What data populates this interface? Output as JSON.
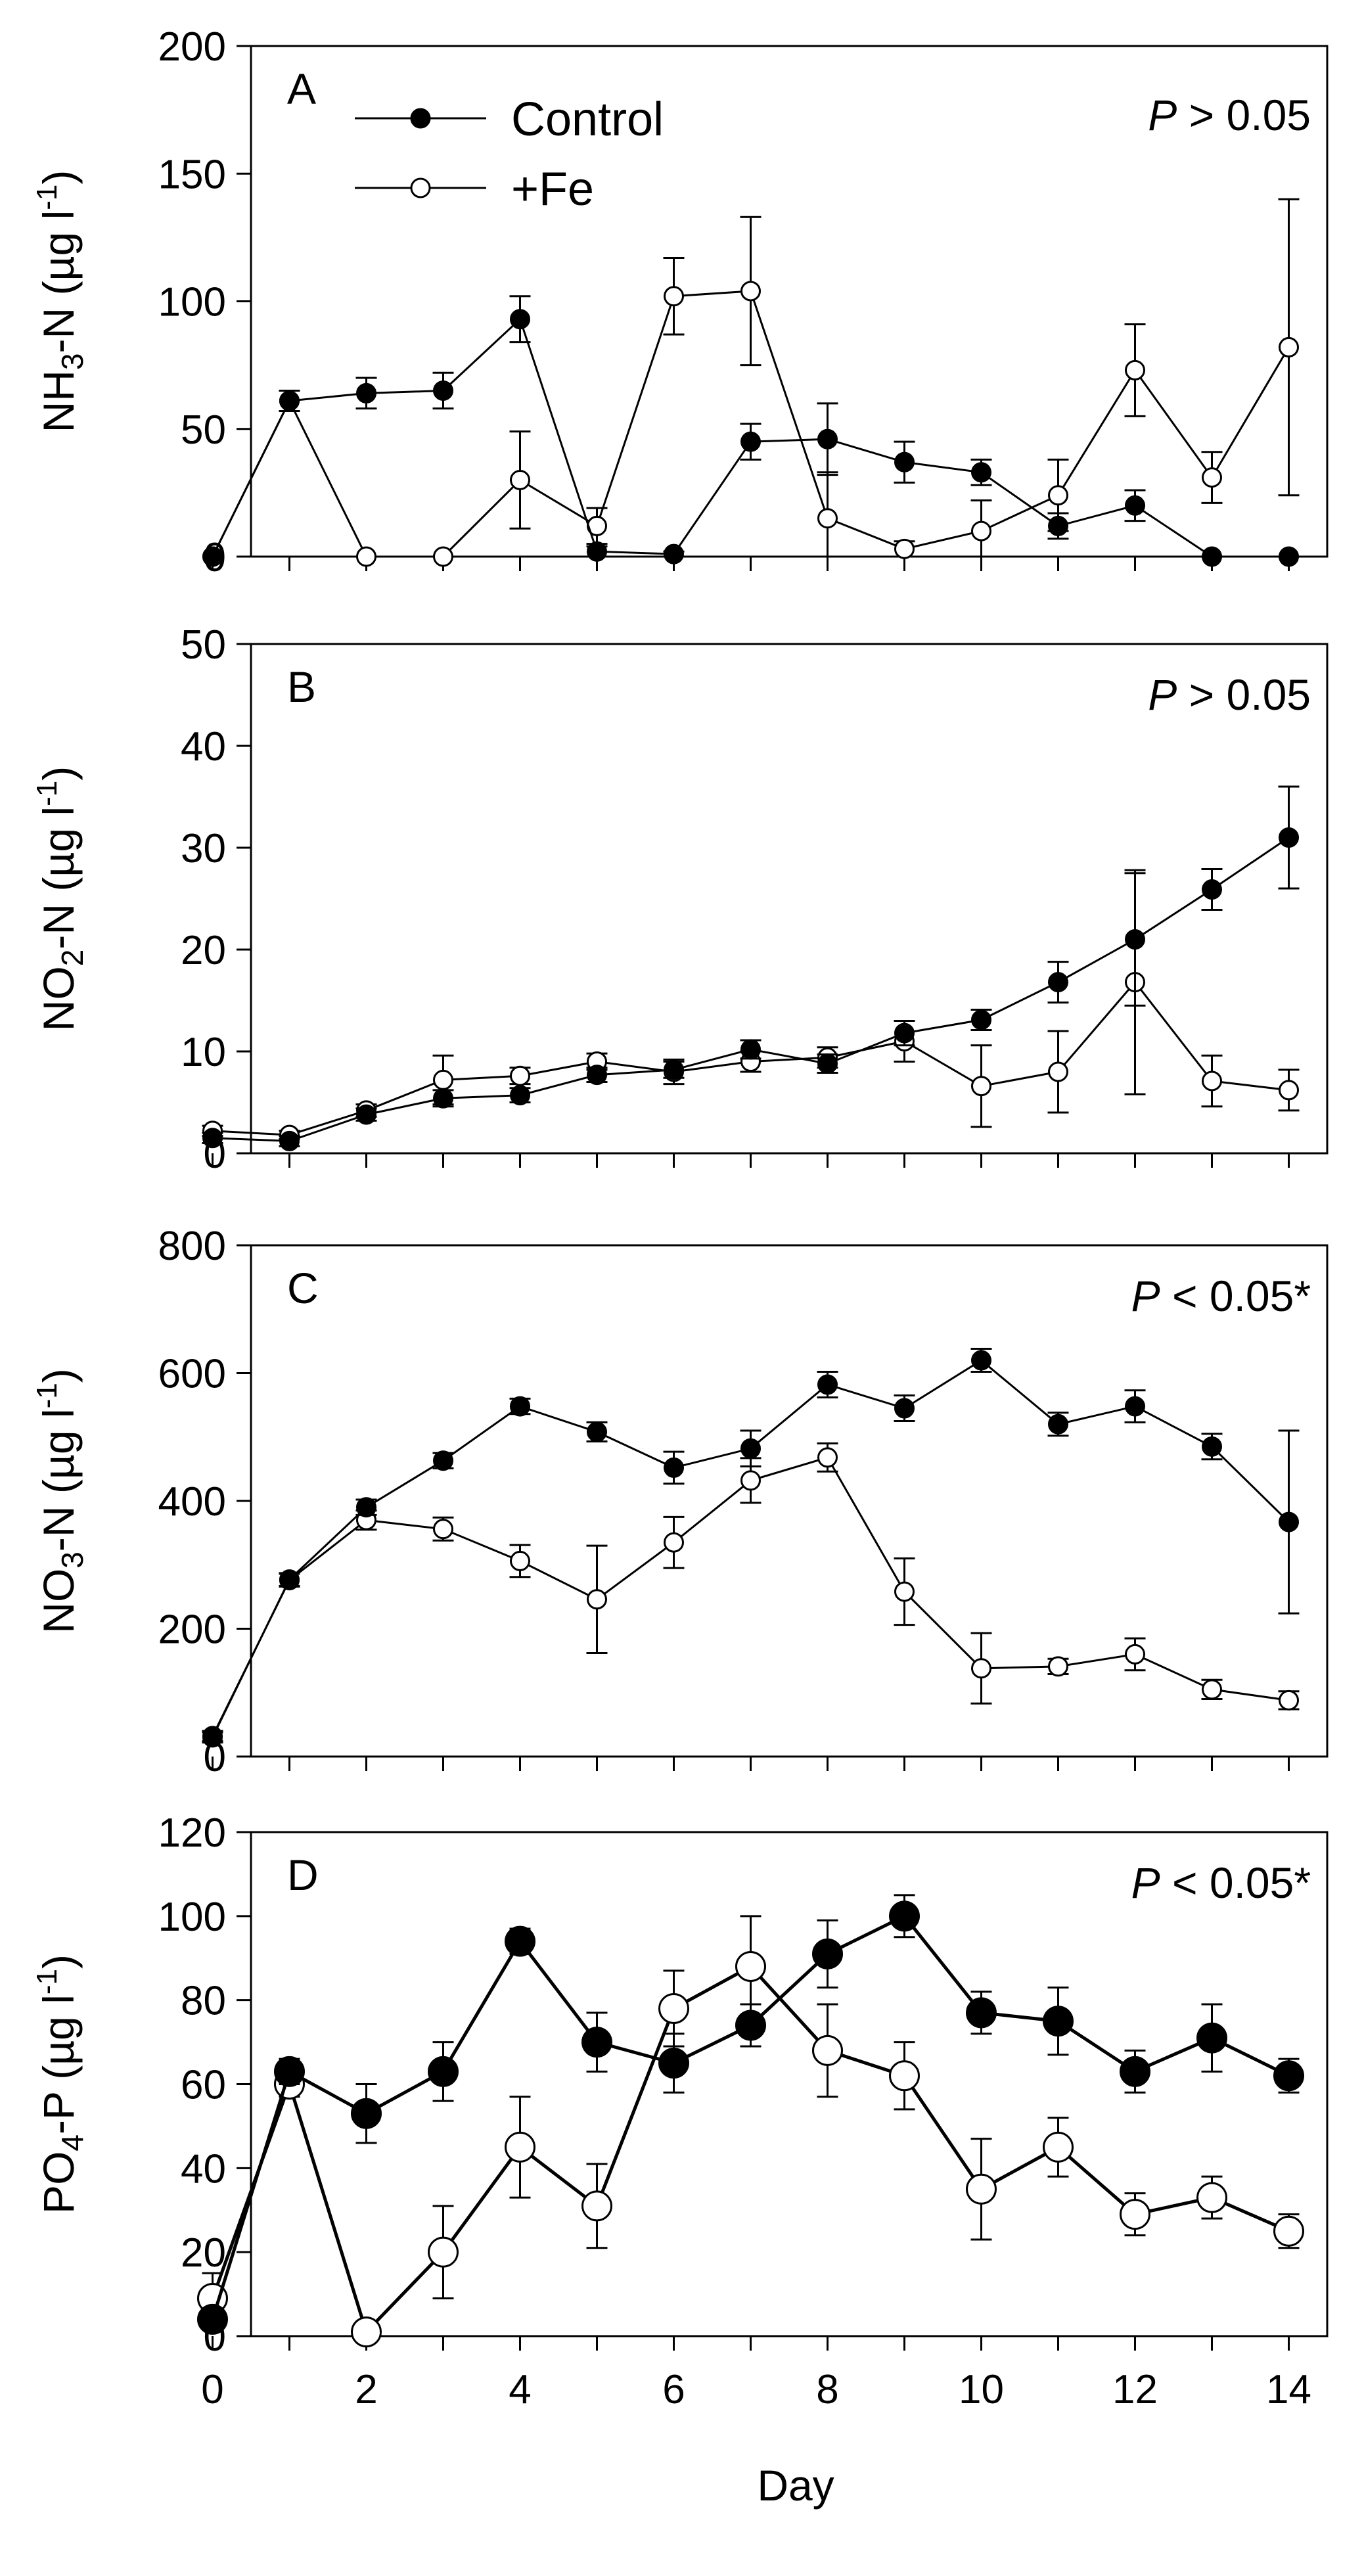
{
  "chart_data": [
    {
      "type": "line",
      "panel_label": "A",
      "ylabel_base": "NH",
      "ylabel_sub": "3",
      "ylabel_rest": "-N (µg l",
      "ylabel_sup": "-1",
      "ylabel_close": ")",
      "ylim": [
        0,
        200
      ],
      "yticks": [
        "0",
        "50",
        "100",
        "150",
        "200"
      ],
      "p_italic": "P",
      "p_rest": " > 0.05",
      "legend": true,
      "series": [
        {
          "name": "Control",
          "fill": "#000000",
          "x": [
            0,
            1,
            2,
            3,
            4,
            5,
            6,
            7,
            8,
            9,
            10,
            11,
            12,
            13,
            14
          ],
          "y": [
            0,
            61,
            64,
            65,
            93,
            2,
            1,
            45,
            46,
            37,
            33,
            12,
            20,
            0,
            0
          ],
          "err": [
            0,
            4,
            6,
            7,
            9,
            2,
            1,
            7,
            14,
            8,
            5,
            5,
            6,
            0,
            0
          ]
        },
        {
          "name": "+Fe",
          "fill": "#ffffff",
          "x": [
            0,
            1,
            2,
            3,
            4,
            5,
            6,
            7,
            8,
            9,
            10,
            11,
            12,
            13,
            14
          ],
          "y": [
            0,
            61,
            0,
            0,
            30,
            12,
            102,
            104,
            15,
            3,
            10,
            24,
            73,
            31,
            82
          ],
          "err": [
            0,
            4,
            0,
            0,
            19,
            7,
            15,
            29,
            18,
            3,
            12,
            14,
            18,
            10,
            58
          ]
        }
      ]
    },
    {
      "type": "line",
      "panel_label": "B",
      "ylabel_base": "NO",
      "ylabel_sub": "2",
      "ylabel_rest": "-N (µg l",
      "ylabel_sup": "-1",
      "ylabel_close": ")",
      "ylim": [
        0,
        50
      ],
      "yticks": [
        "0",
        "10",
        "20",
        "30",
        "40",
        "50"
      ],
      "p_italic": "P",
      "p_rest": " > 0.05",
      "legend": false,
      "series": [
        {
          "name": "Control",
          "fill": "#000000",
          "x": [
            0,
            1,
            2,
            3,
            4,
            5,
            6,
            7,
            8,
            9,
            10,
            11,
            12,
            13,
            14
          ],
          "y": [
            1.5,
            1.2,
            3.8,
            5.4,
            5.7,
            7.7,
            8.2,
            10.2,
            8.8,
            11.8,
            13.1,
            16.8,
            21,
            25.9,
            31
          ],
          "err": [
            0.5,
            0.5,
            0.6,
            0.8,
            0.7,
            0.7,
            0.8,
            0.9,
            0.9,
            1.2,
            1,
            2,
            6.5,
            2,
            5
          ]
        },
        {
          "name": "+Fe",
          "fill": "#ffffff",
          "x": [
            0,
            1,
            2,
            3,
            4,
            5,
            6,
            7,
            8,
            9,
            10,
            11,
            12,
            13,
            14
          ],
          "y": [
            2.2,
            1.8,
            4.2,
            7.2,
            7.6,
            9,
            8,
            9,
            9.4,
            11,
            6.6,
            8,
            16.8,
            7.1,
            6.2
          ],
          "err": [
            0.5,
            0.4,
            0.6,
            2.4,
            0.8,
            0.8,
            1.2,
            1,
            1,
            2,
            4,
            4,
            11,
            2.5,
            2
          ]
        }
      ]
    },
    {
      "type": "line",
      "panel_label": "C",
      "ylabel_base": "NO",
      "ylabel_sub": "3",
      "ylabel_rest": "-N (µg l",
      "ylabel_sup": "-1",
      "ylabel_close": ")",
      "ylim": [
        0,
        800
      ],
      "yticks": [
        "0",
        "200",
        "400",
        "600",
        "800"
      ],
      "p_italic": "P",
      "p_rest": " < 0.05*",
      "legend": false,
      "series": [
        {
          "name": "Control",
          "fill": "#000000",
          "x": [
            0,
            1,
            2,
            3,
            4,
            5,
            6,
            7,
            8,
            9,
            10,
            11,
            12,
            13,
            14
          ],
          "y": [
            30,
            277,
            390,
            463,
            548,
            508,
            452,
            482,
            582,
            545,
            620,
            520,
            548,
            485,
            367
          ],
          "err": [
            8,
            10,
            12,
            12,
            12,
            15,
            25,
            28,
            20,
            20,
            18,
            18,
            25,
            20,
            143
          ]
        },
        {
          "name": "+Fe",
          "fill": "#ffffff",
          "x": [
            0,
            1,
            2,
            3,
            4,
            5,
            6,
            7,
            8,
            9,
            10,
            11,
            12,
            13,
            14
          ],
          "y": [
            32,
            276,
            370,
            356,
            306,
            246,
            335,
            432,
            468,
            258,
            138,
            141,
            160,
            105,
            88
          ],
          "err": [
            8,
            10,
            15,
            18,
            25,
            84,
            40,
            35,
            22,
            52,
            55,
            12,
            25,
            15,
            14
          ]
        }
      ]
    },
    {
      "type": "line",
      "panel_label": "D",
      "ylabel_base": "PO",
      "ylabel_sub": "4",
      "ylabel_rest": "-P (µg l",
      "ylabel_sup": "-1",
      "ylabel_close": ")",
      "ylim": [
        0,
        120
      ],
      "yticks": [
        "0",
        "20",
        "40",
        "60",
        "80",
        "100",
        "120"
      ],
      "p_italic": "P",
      "p_rest": " < 0.05*",
      "legend": false,
      "xlabel": "Day",
      "xticks": [
        "0",
        "2",
        "4",
        "6",
        "8",
        "10",
        "12",
        "14"
      ],
      "series": [
        {
          "name": "Control",
          "fill": "#000000",
          "x": [
            0,
            1,
            2,
            3,
            4,
            5,
            6,
            7,
            8,
            9,
            10,
            11,
            12,
            13,
            14
          ],
          "y": [
            4,
            63,
            53,
            63,
            94,
            70,
            65,
            74,
            91,
            100,
            77,
            75,
            63,
            71,
            62
          ],
          "err": [
            2,
            3,
            7,
            7,
            3,
            7,
            7,
            5,
            8,
            5,
            5,
            8,
            5,
            8,
            4
          ]
        },
        {
          "name": "+Fe",
          "fill": "#ffffff",
          "x": [
            0,
            1,
            2,
            3,
            4,
            5,
            6,
            7,
            8,
            9,
            10,
            11,
            12,
            13,
            14
          ],
          "y": [
            9,
            60,
            1,
            20,
            45,
            31,
            78,
            88,
            68,
            62,
            35,
            45,
            29,
            33,
            25
          ],
          "err": [
            6,
            3,
            0,
            11,
            12,
            10,
            9,
            12,
            11,
            8,
            12,
            7,
            5,
            5,
            4
          ]
        }
      ]
    }
  ]
}
